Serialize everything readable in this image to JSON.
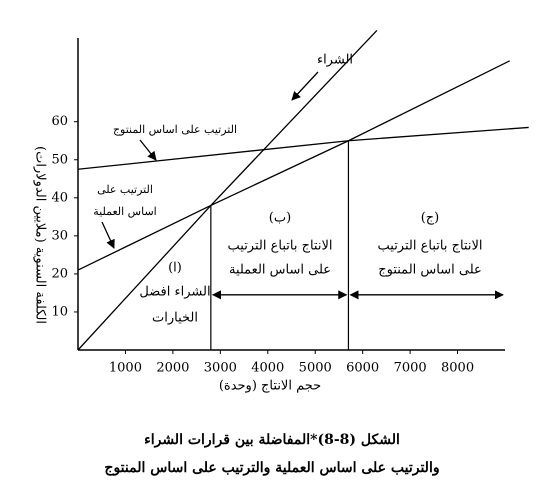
{
  "chart_data": {
    "type": "line",
    "y_label": "الكلفة السنوية (ملايين الدولارات)",
    "x_label": "حجم الانتاج (وحدة)",
    "series": [
      {
        "color": "#000000",
        "x": [
          0,
          2800,
          6300
        ],
        "values": [
          0,
          38,
          84
        ]
      },
      {
        "color": "#000000",
        "x": [
          0,
          5700,
          9500
        ],
        "values": [
          47.5,
          55,
          58.5
        ]
      },
      {
        "color": "#000000",
        "x": [
          0,
          2800,
          5700,
          9100
        ],
        "values": [
          21,
          38,
          55,
          76
        ]
      }
    ],
    "xlim": [
      0,
      9000
    ],
    "ylim": [
      0,
      82
    ],
    "xticks": [
      1000,
      2000,
      3000,
      4000,
      5000,
      6000,
      7000,
      8000
    ],
    "yticks": [
      10,
      20,
      30,
      40,
      50,
      60
    ],
    "break_even": [
      {
        "x": 2800,
        "y": 38
      },
      {
        "x": 5700,
        "y": 55
      }
    ],
    "region_arrow_y": 14.5,
    "annotations": [
      "الشراء",
      "الترتيب على اساس المنتوج",
      "الترتيب على",
      "اساس العملية",
      "(ا)",
      "الشراء افضل",
      "الخيارات",
      "(ب)",
      "الانتاج باتباع الترتيب",
      "على اساس العملية",
      "(ج)",
      "الانتاج باتباع الترتيب",
      "على اساس المنتوج"
    ],
    "caption": [
      "الشكل (8-8)*المفاضلة بين قرارات الشراء",
      "والترتيب على اساس العملية والترتيب على اساس المنتوج"
    ]
  }
}
